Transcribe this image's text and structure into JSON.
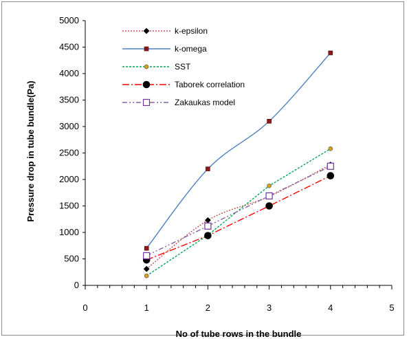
{
  "chart_data": {
    "type": "line",
    "title": "",
    "xlabel": "No of tube rows in the bundle",
    "ylabel": "Pressure drop in tube bundle(Pa)",
    "xlim": [
      0,
      5
    ],
    "ylim": [
      0,
      5000
    ],
    "x_ticks": [
      0,
      1,
      2,
      3,
      4,
      5
    ],
    "y_ticks": [
      0,
      500,
      1000,
      1500,
      2000,
      2500,
      3000,
      3500,
      4000,
      4500,
      5000
    ],
    "grid": false,
    "legend_position": "top-left",
    "series": [
      {
        "name": "k-epsilon",
        "color": "#c0504d",
        "dash": "dotted",
        "smooth": true,
        "marker": "diamond",
        "marker_fill": "#000000",
        "x": [
          1,
          2,
          3,
          4
        ],
        "values": [
          310,
          1230,
          1680,
          2280
        ]
      },
      {
        "name": "k-omega",
        "color": "#4f81bd",
        "dash": "solid",
        "smooth": true,
        "marker": "square",
        "marker_fill": "#8b1a1a",
        "x": [
          1,
          2,
          3,
          4
        ],
        "values": [
          700,
          2200,
          3100,
          4390
        ]
      },
      {
        "name": "SST",
        "color": "#00a651",
        "dash": "dashed-short",
        "smooth": false,
        "marker": "circle-small",
        "marker_fill": "#d4a017",
        "x": [
          1,
          2,
          3,
          4
        ],
        "values": [
          180,
          950,
          1880,
          2580
        ]
      },
      {
        "name": "Taborek correlation",
        "color": "#ff0000",
        "dash": "dash-dot",
        "smooth": false,
        "marker": "circle-large",
        "marker_fill": "#000000",
        "x": [
          1,
          2,
          3,
          4
        ],
        "values": [
          480,
          940,
          1500,
          2070
        ]
      },
      {
        "name": "Zakaukas model",
        "color": "#8064a2",
        "dash": "dash-dot-dot",
        "smooth": false,
        "marker": "square-open",
        "marker_fill": "#ffffff",
        "x": [
          1,
          2,
          3,
          4
        ],
        "values": [
          560,
          1120,
          1690,
          2250
        ]
      }
    ]
  }
}
